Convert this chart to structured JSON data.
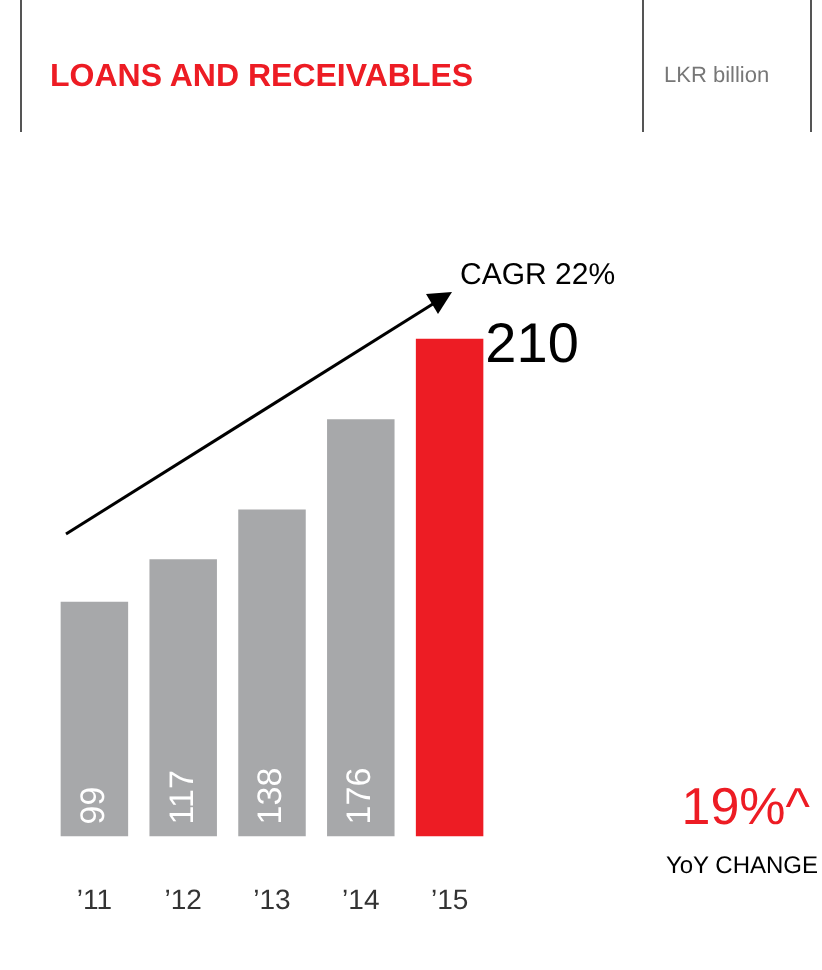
{
  "chart_data": {
    "type": "bar",
    "title": "LOANS AND RECEIVABLES",
    "subtitle": "LKR billion",
    "categories": [
      "’11",
      "’12",
      "’13",
      "’14",
      "’15"
    ],
    "values": [
      99,
      117,
      138,
      176,
      210
    ],
    "colors": [
      "#a7a8aa",
      "#a7a8aa",
      "#a7a8aa",
      "#a7a8aa",
      "#ed1c24"
    ],
    "data_labels": true,
    "grid": false,
    "legend": false,
    "relative": false,
    "annotations": [
      "CAGR 22%",
      "19%^",
      "YoY CHANGE"
    ]
  }
}
